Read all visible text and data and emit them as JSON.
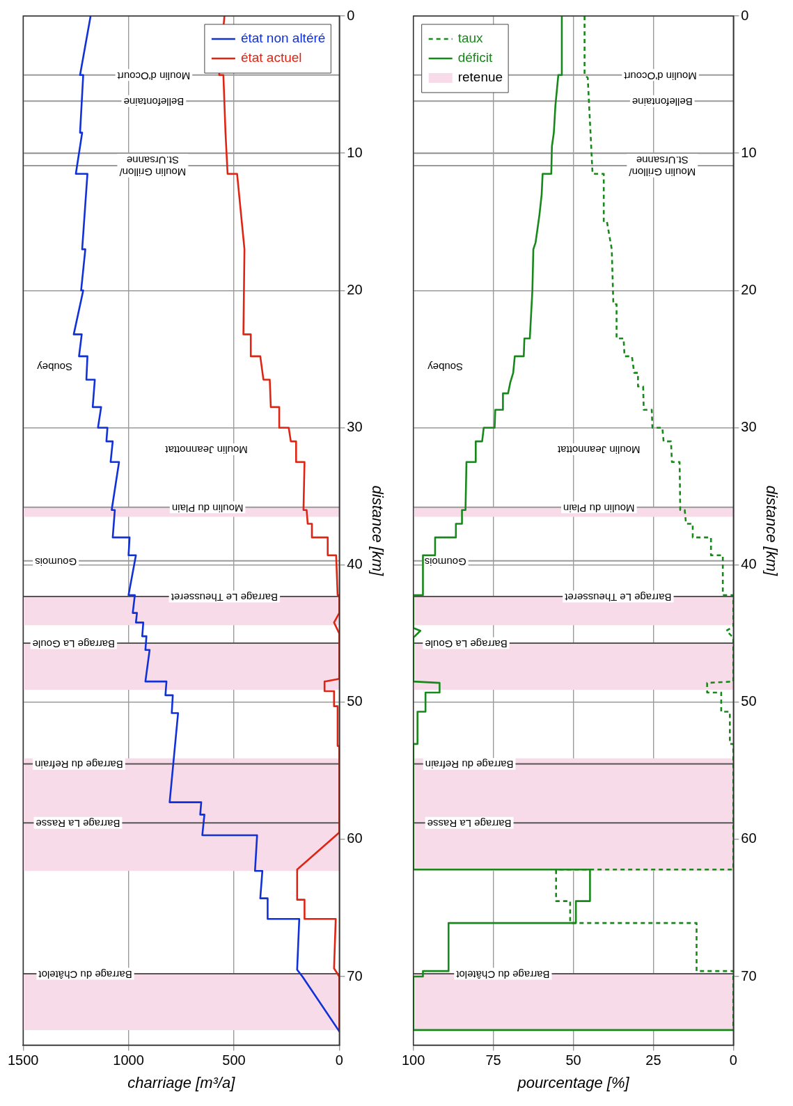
{
  "chart_data": [
    {
      "type": "line",
      "orientation": "horizontal",
      "xlabel": "charriage [m³/a]",
      "ylabel": "distance [km]",
      "xlim": [
        1500,
        0
      ],
      "xticks": [
        1500,
        1000,
        500,
        0
      ],
      "ylim": [
        75,
        0
      ],
      "yticks": [
        0,
        10,
        20,
        30,
        40,
        50,
        60,
        70
      ],
      "grid": true,
      "legend": "top right",
      "series": [
        {
          "name": "état non altéré",
          "color": "#1030d8",
          "line_style": "solid",
          "x": [
            0,
            4.3,
            4.3,
            8.5,
            8.5,
            11.5,
            11.5,
            17,
            17,
            20,
            20,
            23.2,
            23.2,
            24.8,
            24.8,
            26.5,
            26.5,
            28.5,
            28.5,
            30,
            30,
            31,
            31,
            32.5,
            32.5,
            36,
            36,
            38,
            38,
            39.3,
            39.3,
            42.2,
            42.2,
            43.5,
            43.5,
            44.2,
            44.2,
            45.2,
            45.2,
            46.2,
            46.2,
            48.5,
            48.5,
            49.5,
            49.5,
            50.8,
            50.8,
            57.3,
            57.3,
            58.2,
            58.2,
            59.7,
            59.7,
            62.3,
            62.3,
            64.3,
            64.3,
            65.8,
            65.8,
            69.5,
            70,
            74
          ],
          "values": [
            1180,
            1230,
            1215,
            1230,
            1220,
            1250,
            1195,
            1220,
            1205,
            1225,
            1215,
            1260,
            1222,
            1235,
            1195,
            1200,
            1160,
            1170,
            1130,
            1145,
            1100,
            1105,
            1075,
            1085,
            1045,
            1080,
            1065,
            1075,
            995,
            1000,
            965,
            1000,
            970,
            980,
            960,
            965,
            930,
            935,
            915,
            920,
            900,
            920,
            820,
            825,
            790,
            795,
            765,
            805,
            655,
            660,
            640,
            650,
            390,
            400,
            365,
            375,
            340,
            340,
            190,
            200,
            175,
            0
          ]
        },
        {
          "name": "état actuel",
          "color": "#e02414",
          "line_style": "solid",
          "x": [
            0,
            4.3,
            4.3,
            8.5,
            11.5,
            11.5,
            17,
            23.2,
            23.2,
            24.8,
            24.8,
            26.5,
            26.5,
            28.5,
            28.5,
            30,
            30,
            31,
            31,
            32.5,
            32.5,
            36,
            36,
            37,
            37,
            38,
            38,
            39.3,
            39.3,
            42.2,
            42.2,
            43.5,
            44.2,
            45,
            48.3,
            48.5,
            49.2,
            49.2,
            50.3,
            50.3,
            53.2,
            53.2,
            59.5,
            62.2,
            64.4,
            64.4,
            65.8,
            65.8,
            69.4,
            70,
            74
          ],
          "values": [
            545,
            570,
            550,
            540,
            530,
            485,
            450,
            455,
            420,
            420,
            375,
            360,
            330,
            325,
            285,
            285,
            240,
            230,
            205,
            205,
            165,
            170,
            155,
            150,
            130,
            130,
            55,
            55,
            15,
            8,
            0,
            0,
            25,
            0,
            0,
            70,
            70,
            25,
            25,
            8,
            8,
            0,
            0,
            200,
            200,
            165,
            165,
            17,
            25,
            0,
            0
          ]
        }
      ],
      "ref_lines": [
        {
          "axis": "y",
          "value": 4.3,
          "color": "#9a9a9a"
        },
        {
          "axis": "y",
          "value": 6.2,
          "color": "#9a9a9a"
        },
        {
          "axis": "y",
          "value": 10,
          "color": "#9a9a9a"
        },
        {
          "axis": "y",
          "value": 10.9,
          "color": "#9a9a9a"
        },
        {
          "axis": "y",
          "value": 35.8,
          "color": "#9a9a9a"
        },
        {
          "axis": "y",
          "value": 39.7,
          "color": "#9a9a9a"
        },
        {
          "axis": "y",
          "value": 42.3,
          "color": "#555555"
        },
        {
          "axis": "y",
          "value": 45.7,
          "color": "#555555"
        },
        {
          "axis": "y",
          "value": 54.5,
          "color": "#555555"
        },
        {
          "axis": "y",
          "value": 58.8,
          "color": "#555555"
        },
        {
          "axis": "y",
          "value": 69.8,
          "color": "#555555"
        }
      ],
      "bands": [
        {
          "axis": "y",
          "from": 35.8,
          "to": 36.5,
          "color": "#f8dbe8"
        },
        {
          "axis": "y",
          "from": 42.3,
          "to": 44.4,
          "color": "#f8dbe8"
        },
        {
          "axis": "y",
          "from": 45.7,
          "to": 49.1,
          "color": "#f8dbe8"
        },
        {
          "axis": "y",
          "from": 54.1,
          "to": 62.3,
          "color": "#f8dbe8"
        },
        {
          "axis": "y",
          "from": 69.8,
          "to": 73.9,
          "color": "#f8dbe8"
        }
      ],
      "annotations": [
        {
          "text": "Moulin d'Ocourt",
          "x": 880,
          "y": 4.3
        },
        {
          "text": "Bellefontaine",
          "x": 880,
          "y": 6.2
        },
        {
          "text": "Moulin Grillon/\nSt.Ursanne",
          "x": 885,
          "y": 10.9
        },
        "Soubey",
        "Moulin Jeannottat",
        {
          "text": "Moulin du Plain",
          "x": 625,
          "y": 35.8
        },
        {
          "text": "Goumois",
          "x": 1345,
          "y": 39.7
        },
        {
          "text": "Barrage Le Theusseret",
          "x": 545,
          "y": 42.3
        },
        {
          "text": "Barrage La Goule",
          "x": 1260,
          "y": 45.7
        },
        {
          "text": "Barrage du Refrain",
          "x": 1235,
          "y": 54.5
        },
        {
          "text": "Barrage La Rasse",
          "x": 1240,
          "y": 58.8
        },
        {
          "text": "Barrage du Châtelot",
          "x": 1205,
          "y": 69.8
        }
      ]
    },
    {
      "type": "line",
      "orientation": "horizontal",
      "xlabel": "pourcentage [%]",
      "ylabel": "distance [km]",
      "xlim": [
        100,
        0
      ],
      "xticks": [
        100,
        75,
        50,
        25,
        0
      ],
      "ylim": [
        75,
        0
      ],
      "yticks": [
        0,
        10,
        20,
        30,
        40,
        50,
        60,
        70
      ],
      "grid": true,
      "legend": "top left",
      "series": [
        {
          "name": "taux",
          "color": "#17881a",
          "line_style": "dashed",
          "x": [
            0,
            4.3,
            4.5,
            11.5,
            11.5,
            15,
            15,
            17,
            21,
            21,
            23.5,
            23.5,
            24.8,
            24.8,
            26,
            26,
            27,
            27,
            28.7,
            28.7,
            30,
            30,
            31,
            31,
            32.5,
            32.5,
            36,
            36,
            37,
            37,
            38,
            38,
            39.3,
            39.3,
            42.2,
            42.2,
            44.5,
            44.8,
            45.3,
            48.5,
            48.6,
            49.3,
            49.3,
            50.7,
            50.7,
            53.05,
            53.05,
            62.2,
            62.2,
            64.5,
            64.5,
            66.1,
            66.1,
            69.6,
            69.6,
            73.9
          ],
          "values": [
            46.5,
            46.5,
            45.5,
            44,
            40.5,
            40.5,
            39.5,
            38,
            37.5,
            36.5,
            36.5,
            34.3,
            34,
            31.7,
            31,
            29.8,
            29.8,
            28.2,
            28,
            25.5,
            25.3,
            22.2,
            21.8,
            19.5,
            19.2,
            16.8,
            16.6,
            15.2,
            14.8,
            12.7,
            12.7,
            7,
            7,
            3.3,
            3.3,
            0,
            0,
            2.2,
            0,
            0,
            8.2,
            8.2,
            3.8,
            3.8,
            1.1,
            1.1,
            0,
            0,
            55.4,
            55.4,
            51,
            51,
            11.5,
            11.5,
            0,
            0
          ]
        },
        {
          "name": "déficit",
          "color": "#17881a",
          "line_style": "solid",
          "x": [
            0,
            4.3,
            4.3,
            6.5,
            8.5,
            9.5,
            11.5,
            11.5,
            13,
            14.5,
            15.5,
            16.5,
            17,
            20,
            23.5,
            23.5,
            24.8,
            24.8,
            26,
            26.7,
            27.5,
            27.5,
            28.7,
            28.7,
            30,
            30,
            31,
            31,
            32.5,
            32.5,
            36,
            36,
            37,
            37,
            38,
            38,
            39.3,
            39.3,
            42.2,
            42.2,
            44.6,
            44.8,
            45.3,
            48.5,
            48.6,
            49.3,
            49.3,
            50.7,
            50.7,
            53.05,
            53.05,
            62.2,
            62.2,
            64.5,
            64.5,
            66.1,
            66.1,
            69.6,
            69.6,
            70,
            70,
            73.9,
            73.9
          ],
          "values": [
            53.6,
            53.6,
            54.7,
            55.6,
            56.1,
            56.7,
            56.9,
            59.6,
            59.9,
            60.6,
            61.2,
            61.8,
            62.5,
            62.8,
            63.6,
            65.3,
            65.5,
            68.3,
            68.8,
            69.7,
            70.4,
            72,
            72,
            74.4,
            74.6,
            78,
            78.5,
            80.5,
            80.5,
            83.4,
            83.7,
            84.8,
            84.8,
            86.7,
            86.7,
            93.2,
            93.2,
            97,
            97,
            100,
            100,
            97.8,
            100,
            100,
            91.8,
            91.8,
            96.2,
            96.2,
            98.7,
            98.7,
            100,
            100,
            44.8,
            44.8,
            49.2,
            49.2,
            89,
            89,
            97,
            97,
            100,
            100,
            0
          ]
        }
      ],
      "ref_lines": [
        {
          "axis": "y",
          "value": 4.3,
          "color": "#9a9a9a"
        },
        {
          "axis": "y",
          "value": 6.2,
          "color": "#9a9a9a"
        },
        {
          "axis": "y",
          "value": 10,
          "color": "#9a9a9a"
        },
        {
          "axis": "y",
          "value": 10.9,
          "color": "#9a9a9a"
        },
        {
          "axis": "y",
          "value": 35.8,
          "color": "#9a9a9a"
        },
        {
          "axis": "y",
          "value": 39.7,
          "color": "#9a9a9a"
        },
        {
          "axis": "y",
          "value": 42.3,
          "color": "#555555"
        },
        {
          "axis": "y",
          "value": 45.7,
          "color": "#555555"
        },
        {
          "axis": "y",
          "value": 54.5,
          "color": "#555555"
        },
        {
          "axis": "y",
          "value": 58.8,
          "color": "#555555"
        },
        {
          "axis": "y",
          "value": 69.8,
          "color": "#555555"
        }
      ],
      "bands": [
        {
          "axis": "y",
          "from": 35.8,
          "to": 36.5,
          "color": "#f8dbe8",
          "label": "retenue"
        },
        {
          "axis": "y",
          "from": 42.3,
          "to": 44.4,
          "color": "#f8dbe8"
        },
        {
          "axis": "y",
          "from": 45.7,
          "to": 49.1,
          "color": "#f8dbe8"
        },
        {
          "axis": "y",
          "from": 54.1,
          "to": 62.3,
          "color": "#f8dbe8"
        },
        {
          "axis": "y",
          "from": 69.8,
          "to": 73.9,
          "color": "#f8dbe8"
        }
      ],
      "annotations": [
        {
          "text": "Moulin d'Ocourt",
          "x": 22.8,
          "y": 4.3
        },
        {
          "text": "Bellefontaine",
          "x": 22.2,
          "y": 6.2
        },
        {
          "text": "Moulin Grillon/\nSt.Ursanne",
          "x": 22.2,
          "y": 10.9
        },
        "Soubey",
        "Moulin Jeannottat",
        {
          "text": "Moulin du Plain",
          "x": 42,
          "y": 35.8
        },
        {
          "text": "Goumois",
          "x": 90,
          "y": 39.7
        },
        {
          "text": "Barrage Le Theusseret",
          "x": 36,
          "y": 42.3
        },
        {
          "text": "Barrage La Goule",
          "x": 83.5,
          "y": 45.7
        },
        {
          "text": "Barrage du Refrain",
          "x": 82.5,
          "y": 54.5
        },
        {
          "text": "Barrage La Rasse",
          "x": 82.5,
          "y": 58.8
        },
        {
          "text": "Barrage du Châtelot",
          "x": 72,
          "y": 69.8
        }
      ]
    }
  ]
}
